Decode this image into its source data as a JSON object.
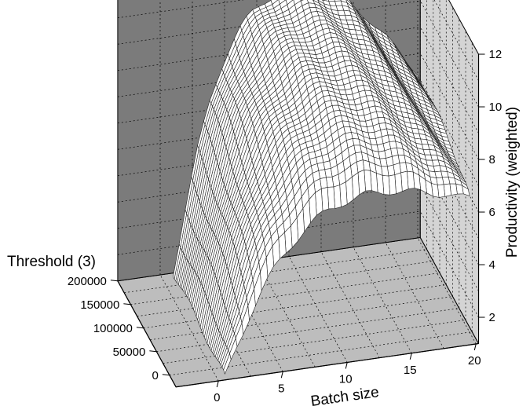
{
  "chart_data": {
    "type": "surface",
    "xlabel": "Batch size",
    "ylabel": "Threshold (3)",
    "zlabel": "Productivity (weighted)",
    "x_ticks": [
      "0",
      "5",
      "10",
      "15",
      "20"
    ],
    "y_ticks": [
      "0",
      "50000",
      "100000",
      "150000",
      "200000"
    ],
    "z_ticks": [
      "2",
      "4",
      "6",
      "8",
      "10",
      "12"
    ],
    "xlim": [
      0,
      20
    ],
    "ylim": [
      0,
      200000
    ],
    "zlim": [
      1,
      12
    ],
    "grid": true,
    "surface_summary": {
      "batch_size": [
        1,
        2,
        3,
        4,
        5,
        6,
        7,
        8,
        9,
        10,
        11,
        12,
        13,
        14,
        15,
        16,
        17,
        18,
        19,
        20
      ],
      "productivity_at_threshold_0": [
        0.6,
        1.8,
        2.9,
        3.8,
        4.6,
        5.2,
        5.7,
        6.1,
        6.4,
        6.6,
        6.7,
        6.8,
        6.8,
        6.8,
        6.7,
        6.6,
        6.5,
        6.4,
        6.2,
        6.1
      ],
      "productivity_at_threshold_200000": [
        1.0,
        3.5,
        5.8,
        7.6,
        8.9,
        9.8,
        10.4,
        10.8,
        11.1,
        11.2,
        11.2,
        11.1,
        10.9,
        10.6,
        10.2,
        9.7,
        9.1,
        8.5,
        7.9,
        7.3
      ]
    }
  }
}
